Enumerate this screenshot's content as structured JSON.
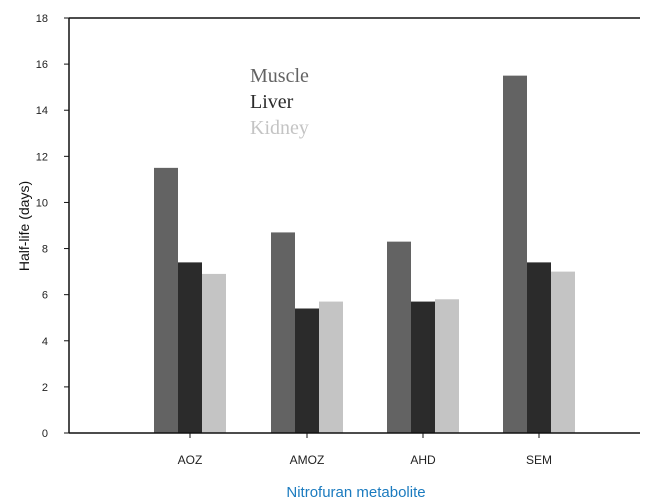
{
  "chart_data": {
    "type": "bar",
    "xlabel": "Nitrofuran metabolite",
    "ylabel": "Half-life (days)",
    "xlabel_color": "#1b7bbf",
    "categories": [
      "AOZ",
      "AMOZ",
      "AHD",
      "SEM"
    ],
    "ylim": [
      0,
      18
    ],
    "yticks": [
      0,
      2,
      4,
      6,
      8,
      10,
      12,
      14,
      16,
      18
    ],
    "legend_position": "top-left inside",
    "series": [
      {
        "name": "Muscle",
        "color": "#636363",
        "values": [
          11.5,
          8.7,
          8.3,
          15.5
        ]
      },
      {
        "name": "Liver",
        "color": "#2b2b2b",
        "values": [
          7.4,
          5.4,
          5.7,
          7.4
        ]
      },
      {
        "name": "Kidney",
        "color": "#c4c4c4",
        "values": [
          6.9,
          5.7,
          5.8,
          7.0
        ]
      }
    ]
  }
}
